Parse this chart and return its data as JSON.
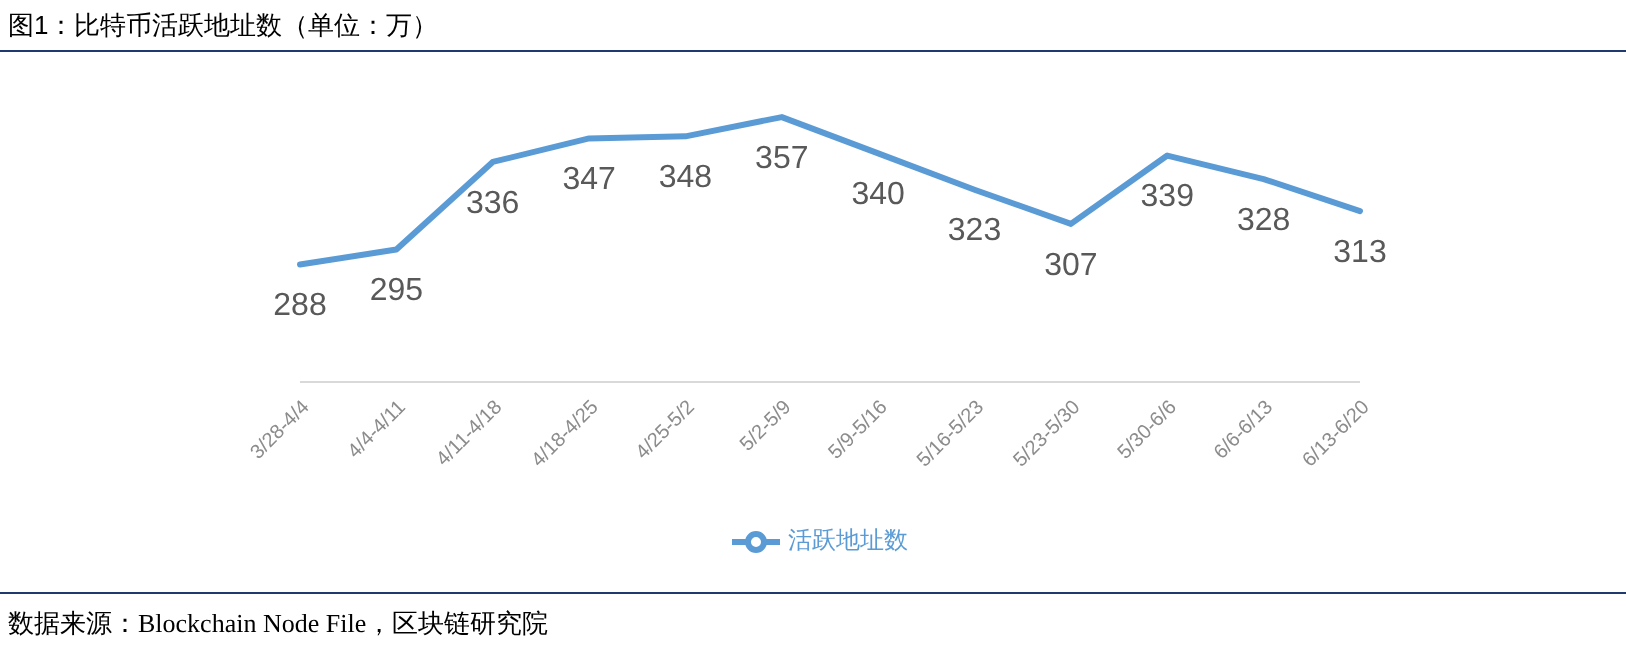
{
  "chart_data": {
    "type": "line",
    "title": "图1：比特币活跃地址数（单位：万）",
    "categories": [
      "3/28-4/4",
      "4/4-4/11",
      "4/11-4/18",
      "4/18-4/25",
      "4/25-5/2",
      "5/2-5/9",
      "5/9-5/16",
      "5/16-5/23",
      "5/23-5/30",
      "5/30-6/6",
      "6/6-6/13",
      "6/13-6/20"
    ],
    "series": [
      {
        "name": "活跃地址数",
        "color": "#5b9bd5",
        "values": [
          288,
          295,
          336,
          347,
          348,
          357,
          340,
          323,
          307,
          339,
          328,
          313
        ]
      }
    ],
    "data_labels": true,
    "legend": "bottom",
    "grid": false,
    "marker": "none",
    "line_style": "solid",
    "tick_labels": "x",
    "annotations": [
      "数据来源：Blockchain Node File，区块链研究院"
    ]
  }
}
